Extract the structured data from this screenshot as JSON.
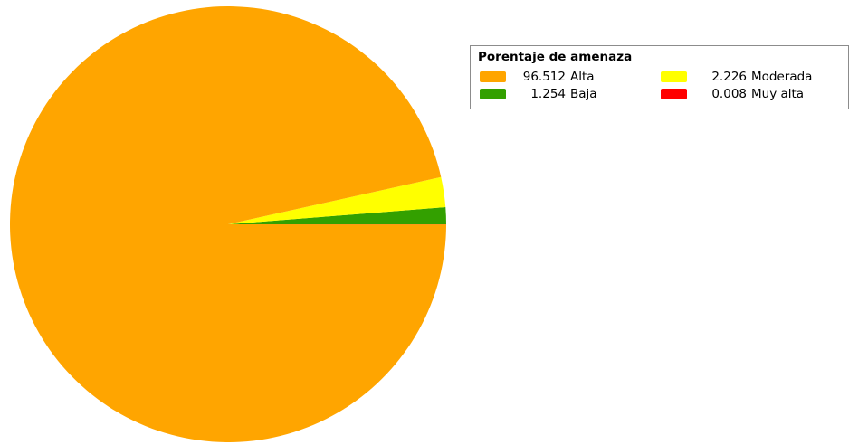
{
  "chart_data": {
    "type": "pie",
    "legend_title": "Porentaje de amenaza",
    "legend_position": "top-right",
    "slices": [
      {
        "value": 96.512,
        "value_label": "96.512",
        "label": "Alta",
        "color": "#FFA500"
      },
      {
        "value": 2.226,
        "value_label": "2.226",
        "label": "Moderada",
        "color": "#FFFF00"
      },
      {
        "value": 1.254,
        "value_label": "1.254",
        "label": "Baja",
        "color": "#33A000"
      },
      {
        "value": 0.008,
        "value_label": "0.008",
        "label": "Muy alta",
        "color": "#FF0000"
      }
    ]
  }
}
